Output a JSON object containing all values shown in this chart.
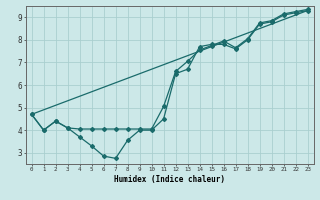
{
  "xlabel": "Humidex (Indice chaleur)",
  "xlim": [
    -0.5,
    23.5
  ],
  "ylim": [
    2.5,
    9.5
  ],
  "xticks": [
    0,
    1,
    2,
    3,
    4,
    5,
    6,
    7,
    8,
    9,
    10,
    11,
    12,
    13,
    14,
    15,
    16,
    17,
    18,
    19,
    20,
    21,
    22,
    23
  ],
  "yticks": [
    3,
    4,
    5,
    6,
    7,
    8,
    9
  ],
  "bg_color": "#cce8e8",
  "grid_color": "#aacfcf",
  "line_color": "#1a6b6b",
  "line1_x": [
    0,
    1,
    2,
    3,
    4,
    5,
    6,
    7,
    8,
    9,
    10,
    11,
    12,
    13,
    14,
    15,
    16,
    17,
    18,
    19,
    20,
    21,
    22,
    23
  ],
  "line1_y": [
    4.7,
    4.0,
    4.4,
    4.1,
    3.7,
    3.3,
    2.85,
    2.75,
    3.55,
    4.0,
    4.0,
    4.5,
    6.5,
    6.7,
    7.7,
    7.8,
    7.8,
    7.6,
    8.0,
    8.7,
    8.8,
    9.1,
    9.2,
    9.3
  ],
  "line2_x": [
    0,
    1,
    2,
    3,
    4,
    5,
    6,
    7,
    8,
    9,
    10,
    11,
    12,
    13,
    14,
    15,
    16,
    17,
    18,
    19,
    20,
    21,
    22,
    23
  ],
  "line2_y": [
    4.7,
    4.0,
    4.4,
    4.1,
    4.05,
    4.05,
    4.05,
    4.05,
    4.05,
    4.05,
    4.05,
    5.05,
    6.6,
    7.05,
    7.55,
    7.75,
    7.95,
    7.65,
    8.05,
    8.75,
    8.85,
    9.15,
    9.25,
    9.35
  ],
  "line3_x": [
    0,
    23
  ],
  "line3_y": [
    4.7,
    9.3
  ]
}
